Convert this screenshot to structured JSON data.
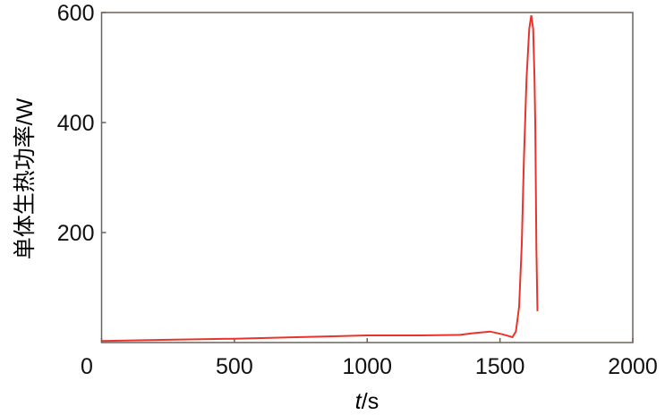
{
  "chart_data": {
    "type": "line",
    "title": "",
    "xlabel_italic": "t",
    "xlabel_unit": "/s",
    "ylabel": "单体生热功率/W",
    "xlim": [
      0,
      2000
    ],
    "ylim": [
      0,
      600
    ],
    "xticks": [
      0,
      500,
      1000,
      1500,
      2000
    ],
    "yticks": [
      200,
      400,
      600
    ],
    "grid": false,
    "line_color": "#e8342c",
    "axis_color": "#6b625c",
    "series": [
      {
        "x": [
          0,
          250,
          500,
          750,
          1000,
          1200,
          1350,
          1400,
          1463,
          1510,
          1547,
          1560,
          1572,
          1582,
          1590,
          1600,
          1610,
          1618,
          1625,
          1630,
          1633,
          1637,
          1641
        ],
        "y": [
          3,
          5,
          7,
          10,
          13,
          13,
          14,
          17,
          20,
          15,
          10,
          20,
          65,
          180,
          330,
          480,
          570,
          595,
          570,
          480,
          390,
          172,
          57
        ]
      }
    ]
  }
}
